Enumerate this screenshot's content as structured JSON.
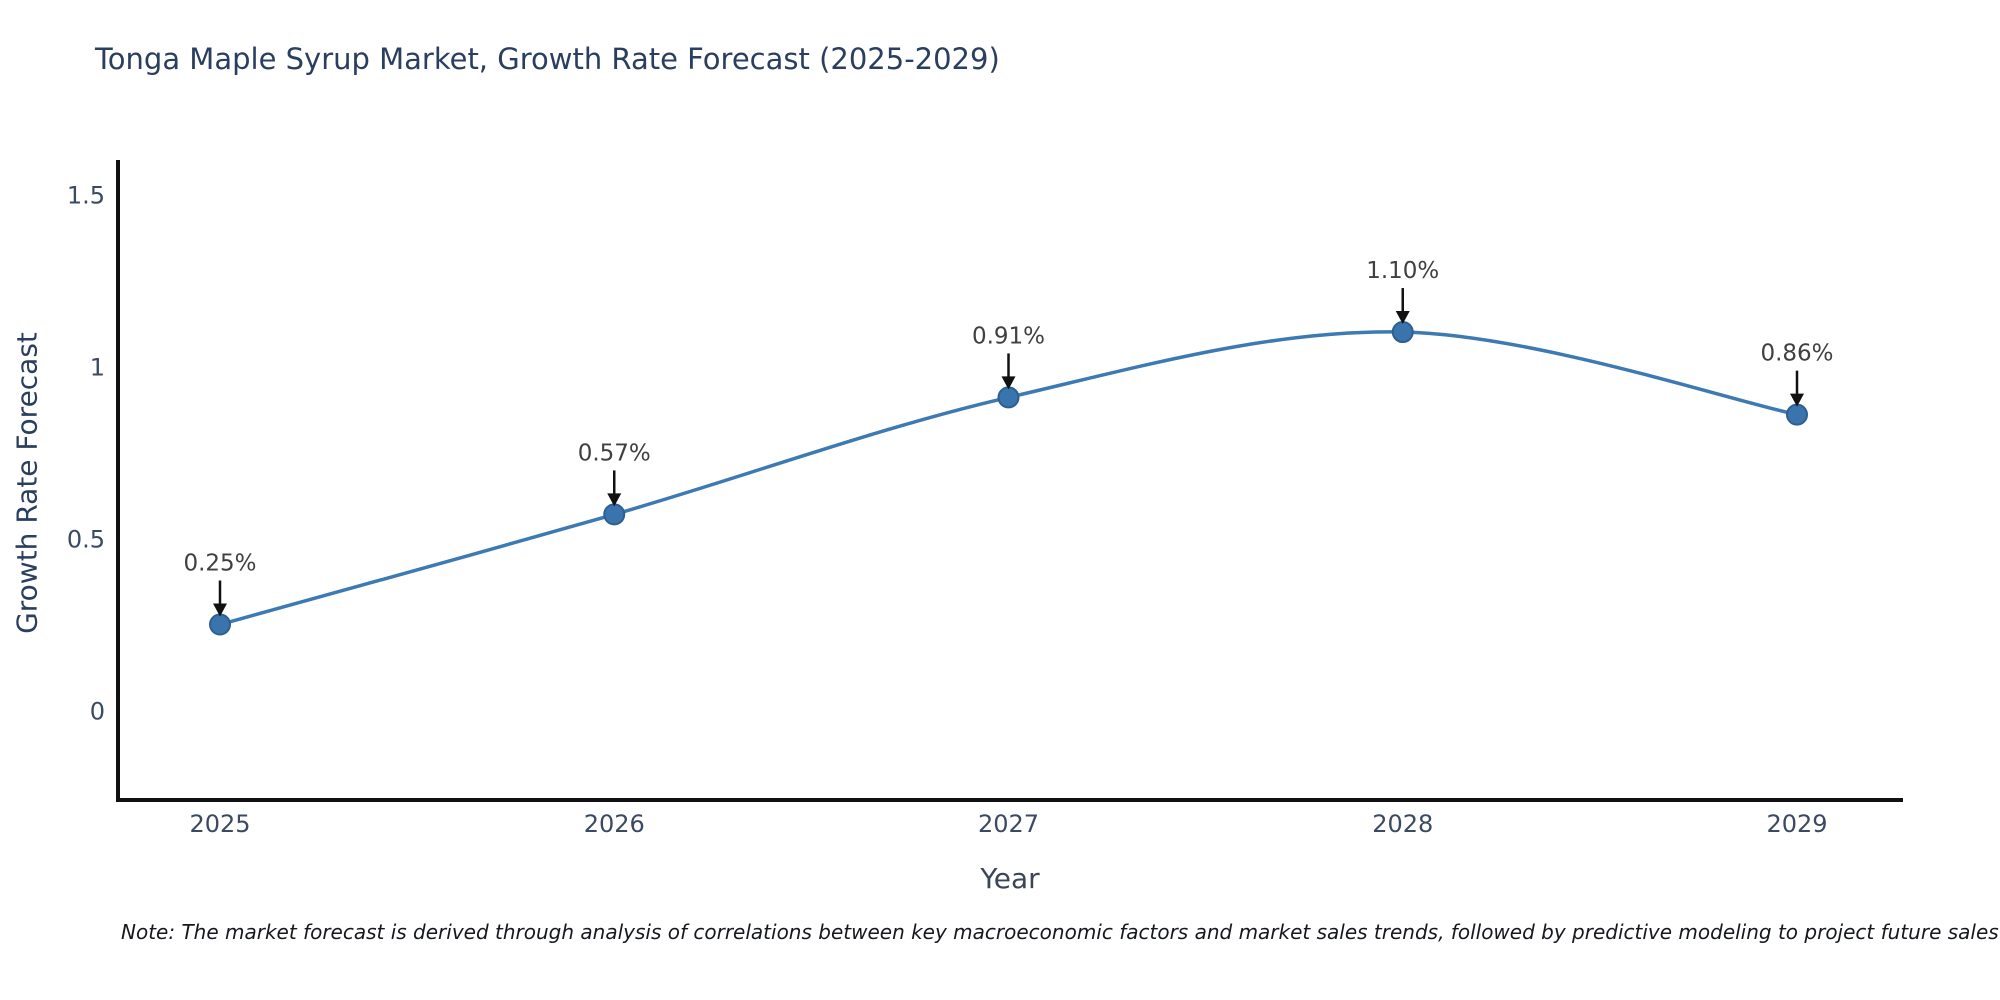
{
  "title": "Tonga Maple Syrup Market, Growth Rate Forecast (2025-2029)",
  "note": "Note: The market forecast is derived through analysis of correlations between key macroeconomic factors and market sales trends, followed by predictive modeling to project future sales",
  "chart_data": {
    "type": "line",
    "title": "Tonga Maple Syrup Market, Growth Rate Forecast (2025-2029)",
    "xlabel": "Year",
    "ylabel": "Growth Rate Forecast",
    "x": [
      2025,
      2026,
      2027,
      2028,
      2029
    ],
    "xtick_labels": [
      "2025",
      "2026",
      "2027",
      "2028",
      "2029"
    ],
    "series": [
      {
        "name": "Growth Rate Forecast",
        "values": [
          0.25,
          0.57,
          0.91,
          1.1,
          0.86
        ],
        "point_labels": [
          "0.25%",
          "0.57%",
          "0.91%",
          "1.10%",
          "0.86%"
        ]
      }
    ],
    "yticks": [
      0,
      0.5,
      1,
      1.5
    ],
    "ytick_labels": [
      "0",
      "0.5",
      "1",
      "1.5"
    ],
    "ylim": [
      -0.26,
      1.6
    ],
    "grid": false,
    "legend_position": "none",
    "line_shape": "spline",
    "colors": {
      "line": "#3d79b2",
      "marker_fill": "#3a74ad",
      "marker_edge": "#2d5f93",
      "axis_line": "#111111",
      "tick_text": "#3b4a63",
      "annotation_text": "#404040",
      "arrow": "#111111",
      "title_text": "#2a3f5f"
    }
  }
}
